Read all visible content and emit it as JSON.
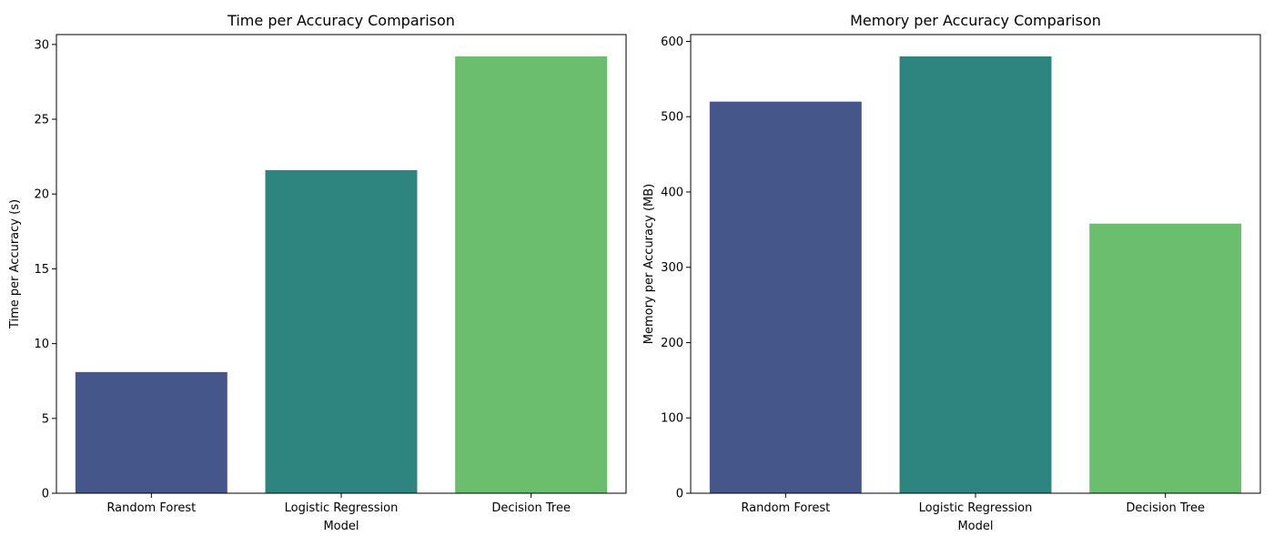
{
  "chart_data": [
    {
      "type": "bar",
      "title": "Time per Accuracy Comparison",
      "xlabel": "Model",
      "ylabel": "Time per Accuracy (s)",
      "categories": [
        "Random Forest",
        "Logistic Regression",
        "Decision Tree"
      ],
      "values": [
        8.1,
        21.6,
        29.2
      ],
      "colors": [
        "#44568a",
        "#2e857f",
        "#6bbe6d"
      ],
      "ylim": [
        0,
        30.66
      ],
      "yticks": [
        0,
        5,
        10,
        15,
        20,
        25,
        30
      ],
      "grid": false,
      "legend": "none"
    },
    {
      "type": "bar",
      "title": "Memory per Accuracy Comparison",
      "xlabel": "Model",
      "ylabel": "Memory per Accuracy (MB)",
      "categories": [
        "Random Forest",
        "Logistic Regression",
        "Decision Tree"
      ],
      "values": [
        520,
        580,
        358
      ],
      "colors": [
        "#44568a",
        "#2e857f",
        "#6bbe6d"
      ],
      "ylim": [
        0,
        609
      ],
      "yticks": [
        0,
        100,
        200,
        300,
        400,
        500,
        600
      ],
      "grid": false,
      "legend": "none"
    }
  ]
}
